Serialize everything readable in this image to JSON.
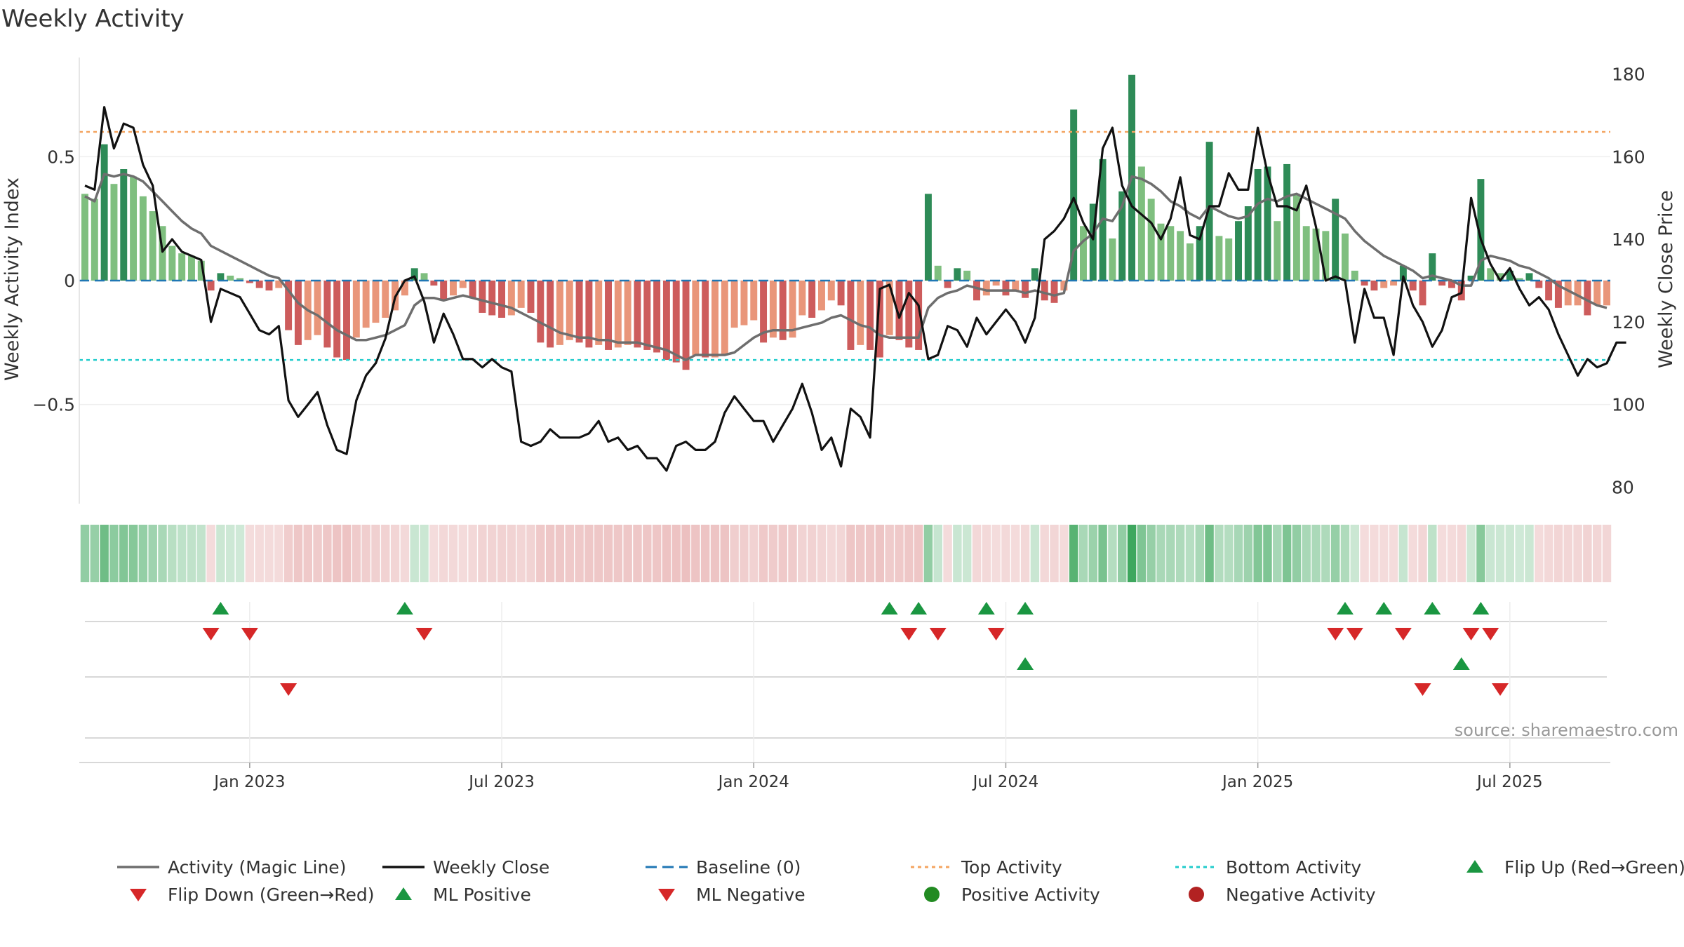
{
  "chart_data": {
    "type": "bar",
    "title": "Weekly Activity",
    "ylabel": "Weekly Activity Index",
    "y2label": "Weekly Close Price",
    "source": "source: sharemaestro.com",
    "ylim": [
      -0.9,
      0.9
    ],
    "y2lim": [
      76,
      184
    ],
    "yticks": [
      {
        "v": 0.5,
        "label": "0.5"
      },
      {
        "v": 0,
        "label": "0"
      },
      {
        "v": -0.5,
        "label": "−0.5"
      }
    ],
    "y2ticks": [
      {
        "v": 180,
        "label": "180"
      },
      {
        "v": 160,
        "label": "160"
      },
      {
        "v": 140,
        "label": "140"
      },
      {
        "v": 120,
        "label": "120"
      },
      {
        "v": 100,
        "label": "100"
      },
      {
        "v": 80,
        "label": "80"
      }
    ],
    "xticks": [
      {
        "i": 17,
        "label": "Jan 2023"
      },
      {
        "i": 43,
        "label": "Jul 2023"
      },
      {
        "i": 69,
        "label": "Jan 2024"
      },
      {
        "i": 95,
        "label": "Jul 2024"
      },
      {
        "i": 121,
        "label": "Jan 2025"
      },
      {
        "i": 147,
        "label": "Jul 2025"
      }
    ],
    "top_activity": 0.6,
    "bottom_activity": -0.32,
    "activity": [
      0.35,
      0.33,
      0.55,
      0.39,
      0.45,
      0.42,
      0.34,
      0.28,
      0.22,
      0.14,
      0.11,
      0.1,
      0.08,
      -0.04,
      0.03,
      0.02,
      0.01,
      -0.01,
      -0.03,
      -0.04,
      -0.03,
      -0.2,
      -0.26,
      -0.24,
      -0.22,
      -0.27,
      -0.31,
      -0.32,
      -0.23,
      -0.19,
      -0.17,
      -0.15,
      -0.12,
      -0.06,
      0.05,
      0.03,
      -0.02,
      -0.08,
      -0.06,
      -0.03,
      -0.07,
      -0.13,
      -0.14,
      -0.15,
      -0.14,
      -0.11,
      -0.13,
      -0.25,
      -0.27,
      -0.26,
      -0.24,
      -0.25,
      -0.27,
      -0.26,
      -0.28,
      -0.27,
      -0.26,
      -0.27,
      -0.28,
      -0.29,
      -0.32,
      -0.33,
      -0.36,
      -0.3,
      -0.31,
      -0.31,
      -0.3,
      -0.19,
      -0.18,
      -0.16,
      -0.25,
      -0.23,
      -0.24,
      -0.23,
      -0.14,
      -0.15,
      -0.12,
      -0.08,
      -0.1,
      -0.28,
      -0.26,
      -0.28,
      -0.31,
      -0.22,
      -0.24,
      -0.27,
      -0.28,
      0.35,
      0.06,
      -0.03,
      0.05,
      0.04,
      -0.08,
      -0.06,
      -0.02,
      -0.06,
      -0.04,
      -0.07,
      0.05,
      -0.08,
      -0.09,
      -0.04,
      0.69,
      0.22,
      0.31,
      0.49,
      0.17,
      0.36,
      0.83,
      0.46,
      0.33,
      0.23,
      0.22,
      0.2,
      0.15,
      0.22,
      0.56,
      0.18,
      0.17,
      0.24,
      0.3,
      0.45,
      0.46,
      0.24,
      0.47,
      0.35,
      0.22,
      0.21,
      0.2,
      0.33,
      0.19,
      0.04,
      -0.02,
      -0.04,
      -0.03,
      -0.02,
      0.06,
      -0.04,
      -0.1,
      0.11,
      -0.02,
      -0.03,
      -0.08,
      0.02,
      0.41,
      0.05,
      0.03,
      0.04,
      0.01,
      0.03,
      -0.03,
      -0.08,
      -0.11,
      -0.1,
      -0.1,
      -0.14,
      -0.1,
      -0.1
    ],
    "magic_line": [
      0.34,
      0.32,
      0.43,
      0.42,
      0.43,
      0.42,
      0.4,
      0.36,
      0.32,
      0.28,
      0.24,
      0.21,
      0.19,
      0.14,
      0.12,
      0.1,
      0.08,
      0.06,
      0.04,
      0.02,
      0.01,
      -0.04,
      -0.09,
      -0.12,
      -0.14,
      -0.17,
      -0.2,
      -0.22,
      -0.24,
      -0.24,
      -0.23,
      -0.22,
      -0.2,
      -0.18,
      -0.1,
      -0.07,
      -0.07,
      -0.08,
      -0.07,
      -0.06,
      -0.07,
      -0.08,
      -0.09,
      -0.1,
      -0.11,
      -0.13,
      -0.15,
      -0.17,
      -0.19,
      -0.21,
      -0.22,
      -0.23,
      -0.23,
      -0.24,
      -0.24,
      -0.25,
      -0.25,
      -0.25,
      -0.26,
      -0.27,
      -0.28,
      -0.3,
      -0.32,
      -0.3,
      -0.3,
      -0.3,
      -0.3,
      -0.29,
      -0.26,
      -0.23,
      -0.21,
      -0.2,
      -0.2,
      -0.2,
      -0.19,
      -0.18,
      -0.17,
      -0.15,
      -0.14,
      -0.16,
      -0.18,
      -0.19,
      -0.22,
      -0.23,
      -0.23,
      -0.23,
      -0.23,
      -0.11,
      -0.07,
      -0.05,
      -0.04,
      -0.02,
      -0.03,
      -0.04,
      -0.04,
      -0.04,
      -0.04,
      -0.05,
      -0.04,
      -0.05,
      -0.06,
      -0.05,
      0.12,
      0.16,
      0.19,
      0.25,
      0.24,
      0.3,
      0.42,
      0.41,
      0.39,
      0.36,
      0.32,
      0.3,
      0.27,
      0.25,
      0.3,
      0.28,
      0.26,
      0.25,
      0.26,
      0.31,
      0.33,
      0.32,
      0.34,
      0.35,
      0.33,
      0.31,
      0.29,
      0.27,
      0.25,
      0.2,
      0.16,
      0.13,
      0.1,
      0.08,
      0.06,
      0.04,
      0.01,
      0.02,
      0.01,
      0,
      -0.02,
      -0.02,
      0.08,
      0.1,
      0.09,
      0.08,
      0.06,
      0.05,
      0.03,
      0.01,
      -0.02,
      -0.04,
      -0.06,
      -0.08,
      -0.1,
      -0.11
    ],
    "close": [
      153,
      152,
      172,
      162,
      168,
      167,
      158,
      153,
      137,
      140,
      137,
      136,
      135,
      120,
      128,
      127,
      126,
      122,
      118,
      117,
      119,
      101,
      97,
      100,
      103,
      95,
      89,
      88,
      101,
      107,
      110,
      116,
      126,
      130,
      131,
      125,
      115,
      122,
      117,
      111,
      111,
      109,
      111,
      109,
      108,
      91,
      90,
      91,
      94,
      92,
      92,
      92,
      93,
      96,
      91,
      92,
      89,
      90,
      87,
      87,
      84,
      90,
      91,
      89,
      89,
      91,
      98,
      102,
      99,
      96,
      96,
      91,
      95,
      99,
      105,
      98,
      89,
      92,
      85,
      99,
      97,
      92,
      128,
      129,
      121,
      127,
      124,
      111,
      112,
      119,
      118,
      114,
      121,
      117,
      120,
      123,
      120,
      115,
      121,
      140,
      142,
      145,
      150,
      144,
      140,
      162,
      167,
      153,
      148,
      146,
      144,
      140,
      145,
      155,
      141,
      140,
      148,
      148,
      156,
      152,
      152,
      167,
      156,
      148,
      148,
      147,
      153,
      143,
      130,
      131,
      130,
      115,
      128,
      121,
      121,
      112,
      131,
      124,
      120,
      114,
      118,
      126,
      127,
      150,
      140,
      134,
      130,
      133,
      128,
      124,
      126,
      123,
      117,
      112,
      107,
      111,
      109,
      110,
      115,
      115
    ],
    "flip_up": [
      14,
      33,
      83,
      86,
      93,
      97,
      130,
      134,
      139,
      144
    ],
    "flip_down": [
      13,
      17,
      35,
      85,
      88,
      94,
      129,
      131,
      136,
      143,
      145
    ],
    "ml_positive": [
      97,
      142
    ],
    "ml_negative": [
      21,
      138,
      146
    ],
    "legend": [
      {
        "key": "line_gray",
        "label": "Activity (Magic Line)"
      },
      {
        "key": "line_black",
        "label": "Weekly Close"
      },
      {
        "key": "baseline",
        "label": "Baseline (0)"
      },
      {
        "key": "top",
        "label": "Top Activity"
      },
      {
        "key": "bottom",
        "label": "Bottom Activity"
      },
      {
        "key": "flip_up",
        "label": "Flip Up (Red→Green)"
      },
      {
        "key": "flip_down",
        "label": "Flip Down (Green→Red)"
      },
      {
        "key": "ml_pos",
        "label": "ML Positive"
      },
      {
        "key": "ml_neg",
        "label": "ML Negative"
      },
      {
        "key": "pos",
        "label": "Positive Activity"
      },
      {
        "key": "neg",
        "label": "Negative Activity"
      }
    ]
  },
  "colors": {
    "green_dark": "#2e8b57",
    "green_light": "#7fbf7f",
    "red_dark": "#cd5c5c",
    "red_light": "#e9967a",
    "magic": "#6e6e6e",
    "close": "#111111",
    "baseline": "#1f77b4",
    "top": "#f4a460",
    "bottom": "#22cccc",
    "flip_up": "#1a9641",
    "flip_down": "#d62728",
    "pos_dot": "#228b22",
    "neg_dot": "#b22222"
  }
}
